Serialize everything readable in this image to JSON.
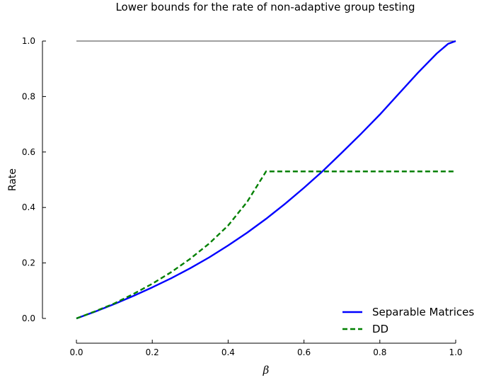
{
  "chart_data": {
    "type": "line",
    "title": "Lower bounds for the rate of non-adaptive group testing",
    "xlabel": "β",
    "ylabel": "Rate",
    "xlim": [
      0.0,
      1.0
    ],
    "ylim": [
      0.0,
      1.0
    ],
    "xticks": [
      "0.0",
      "0.2",
      "0.4",
      "0.6",
      "0.8",
      "1.0"
    ],
    "yticks": [
      "0.0",
      "0.2",
      "0.4",
      "0.6",
      "0.8",
      "1.0"
    ],
    "grid": false,
    "legend_position": "bottom-right",
    "reference_line": {
      "y": 1.0,
      "color": "#000000"
    },
    "series": [
      {
        "name": "Separable Matrices",
        "color": "#0000ff",
        "style": "solid",
        "x": [
          0.0,
          0.05,
          0.1,
          0.15,
          0.2,
          0.25,
          0.3,
          0.35,
          0.4,
          0.45,
          0.5,
          0.55,
          0.6,
          0.65,
          0.7,
          0.75,
          0.8,
          0.85,
          0.9,
          0.95,
          0.98,
          1.0
        ],
        "y": [
          0.0,
          0.025,
          0.052,
          0.081,
          0.112,
          0.145,
          0.181,
          0.22,
          0.263,
          0.309,
          0.359,
          0.413,
          0.471,
          0.532,
          0.598,
          0.665,
          0.735,
          0.81,
          0.885,
          0.955,
          0.99,
          1.0
        ]
      },
      {
        "name": "DD",
        "color": "#008000",
        "style": "dashed",
        "x": [
          0.0,
          0.05,
          0.1,
          0.15,
          0.2,
          0.25,
          0.3,
          0.35,
          0.4,
          0.45,
          0.5,
          0.6,
          0.7,
          0.8,
          0.9,
          1.0
        ],
        "y": [
          0.0,
          0.026,
          0.054,
          0.088,
          0.125,
          0.167,
          0.215,
          0.27,
          0.335,
          0.42,
          0.53,
          0.53,
          0.53,
          0.53,
          0.53,
          0.53
        ]
      }
    ]
  }
}
